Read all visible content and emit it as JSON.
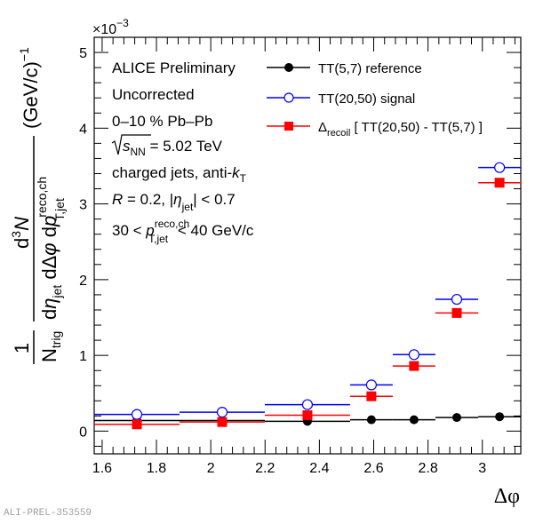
{
  "chart_data": {
    "type": "scatter",
    "title": "",
    "xlabel": "Δφ",
    "ylabel": "1/N_trig d³N/(dη_jet dΔφ dp_T,jet^reco,ch) (GeV/c)^-1",
    "ylabel_parts": {
      "numerator_prefix": "1",
      "n_trig": "N",
      "n_trig_sub": "trig",
      "d3n": "d",
      "d3n_sup": "3",
      "d3n_n": "N",
      "denominator": "dη",
      "eta_sub": "jet",
      "dphi": " dΔφ dp",
      "pt_sup": "reco,ch",
      "pt_sub": "T,jet",
      "units": "(GeV/c)",
      "units_sup": "−1"
    },
    "y_multiplier": "×10",
    "y_multiplier_exp": "−3",
    "xlim": [
      1.5708,
      3.1416
    ],
    "ylim": [
      -0.3,
      5.2
    ],
    "x_ticks": [
      1.6,
      1.8,
      2.0,
      2.2,
      2.4,
      2.6,
      2.8,
      3.0
    ],
    "x_tick_labels": [
      "1.6",
      "1.8",
      "2",
      "2.2",
      "2.4",
      "2.6",
      "2.8",
      "3"
    ],
    "y_ticks": [
      0,
      1,
      2,
      3,
      4,
      5
    ],
    "y_tick_labels": [
      "0",
      "1",
      "2",
      "3",
      "4",
      "5"
    ],
    "grid": false,
    "legend_position": "top-right",
    "bin_edges": [
      1.571,
      1.885,
      2.199,
      2.513,
      2.67,
      2.827,
      2.985,
      3.142
    ],
    "series": [
      {
        "name": "TT(5,7) reference",
        "marker": "filled-circle",
        "color": "#000000",
        "values": [
          0.14,
          0.14,
          0.13,
          0.15,
          0.15,
          0.18,
          0.19
        ]
      },
      {
        "name": "TT(20,50) signal",
        "marker": "open-circle",
        "color": "#0000ff",
        "values": [
          0.22,
          0.25,
          0.35,
          0.61,
          1.01,
          1.74,
          3.48
        ]
      },
      {
        "name": "Δrecoil [ TT(20,50) - TT(5,7) ]",
        "name_parts": {
          "delta": "Δ",
          "sub": "recoil",
          "rest": " [ TT(20,50) - TT(5,7) ]"
        },
        "marker": "filled-square",
        "color": "#ff0000",
        "values": [
          0.09,
          0.12,
          0.21,
          0.46,
          0.86,
          1.56,
          3.28
        ]
      }
    ],
    "annotations": [
      "ALICE Preliminary",
      "Uncorrected",
      "0–10 % Pb–Pb",
      "√s_NN = 5.02 TeV",
      "charged jets, anti-k_T",
      "R = 0.2, |η_jet| < 0.7",
      "30 < p_T,jet^reco,ch < 40 GeV/c"
    ],
    "annotation_parts": {
      "sqrt_s": {
        "root": "√",
        "s": "s",
        "sub": "NN",
        "rest": " = 5.02 TeV"
      },
      "jets": {
        "main": "charged jets, anti-",
        "k": "k",
        "sub": "T"
      },
      "radius": {
        "r": "R",
        "mid": " = 0.2, |",
        "eta": "η",
        "sub": "jet",
        "rest": "| < 0.7"
      },
      "pt": {
        "pre": "30 < ",
        "p": "p",
        "sup": "reco,ch",
        "sub": "T,jet",
        "rest": " < 40 GeV/c"
      }
    }
  },
  "watermark": "ALI-PREL-353559"
}
